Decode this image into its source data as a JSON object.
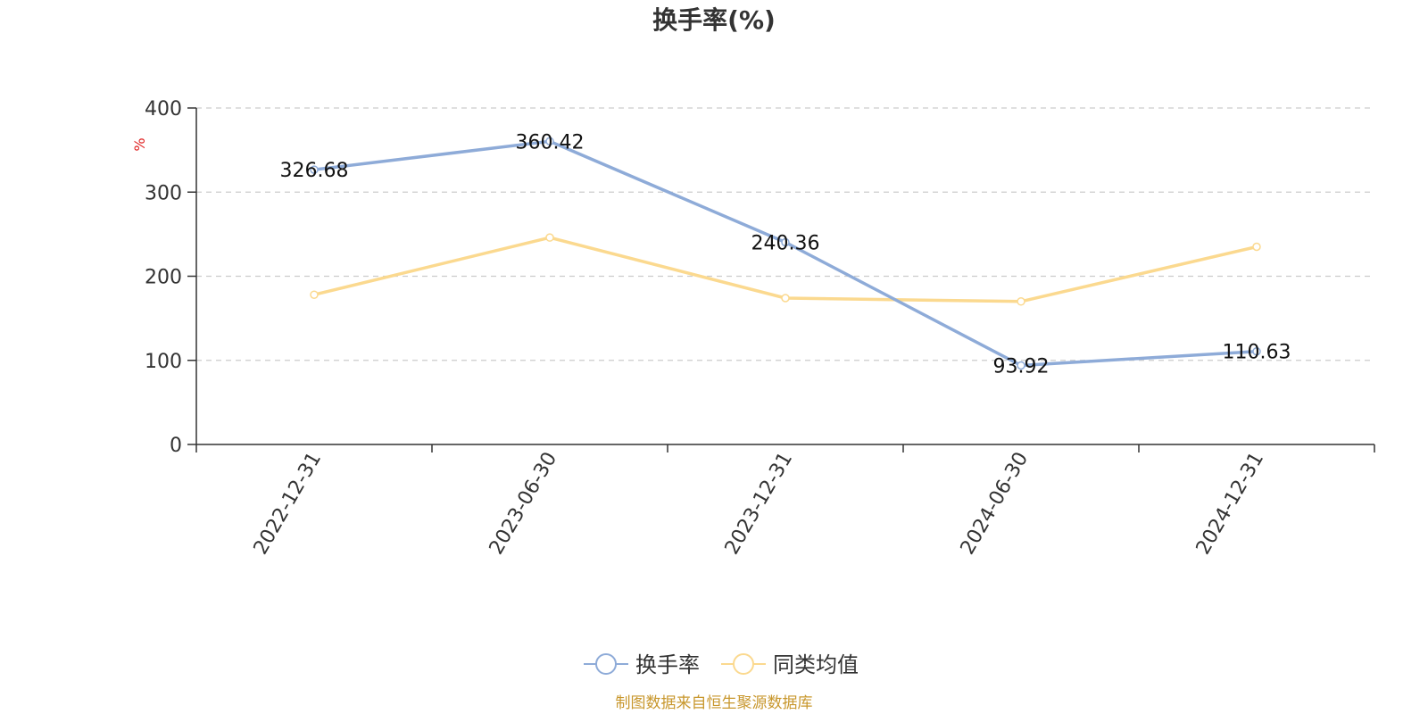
{
  "chart_data": {
    "type": "line",
    "title": "换手率(%)",
    "ylabel": "%",
    "ylim": [
      0,
      400
    ],
    "yticks": [
      0,
      100,
      200,
      300,
      400
    ],
    "categories": [
      "2022-12-31",
      "2023-06-30",
      "2023-12-31",
      "2024-06-30",
      "2024-12-31"
    ],
    "series": [
      {
        "name": "换手率",
        "color": "#8eabd8",
        "values": [
          326.68,
          360.42,
          240.36,
          93.92,
          110.63
        ],
        "labels": [
          "326.68",
          "360.42",
          "240.36",
          "93.92",
          "110.63"
        ]
      },
      {
        "name": "同类均值",
        "color": "#fbd98f",
        "values": [
          178,
          246,
          174,
          170,
          235
        ]
      }
    ],
    "grid": true,
    "legend_position": "bottom-center"
  },
  "source_text": "制图数据来自恒生聚源数据库"
}
